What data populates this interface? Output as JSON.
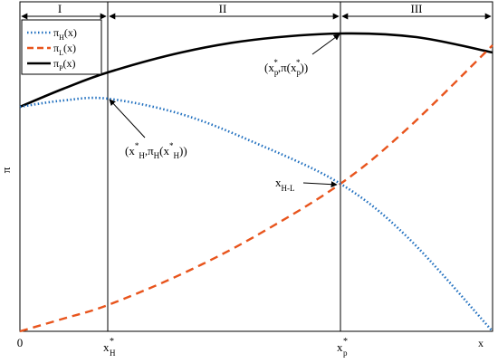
{
  "chart_data": {
    "type": "line",
    "ylabel": "π",
    "axis_marks": {
      "origin": "0",
      "x_end": "x",
      "x_h": "x",
      "x_h_sub": "H",
      "x_p": "x",
      "x_p_sub": "p",
      "star": "*"
    },
    "regions": [
      "I",
      "II",
      "III"
    ],
    "legend": [
      {
        "name": "π",
        "sub": "H",
        "arg": "(x)",
        "style": "dotted",
        "color": "#1f6fbf"
      },
      {
        "name": "π",
        "sub": "L",
        "arg": "(x)",
        "style": "dashed",
        "color": "#e8541c"
      },
      {
        "name": "π",
        "sub": "P",
        "arg": "(x)",
        "style": "solid",
        "color": "#000000"
      }
    ],
    "annotations": {
      "peak_H": {
        "text": "(x*H,πH(x*H))"
      },
      "peak_P": {
        "text": "(x*p,π(x*p))"
      },
      "crossing": {
        "text": "xH-L"
      }
    }
  }
}
